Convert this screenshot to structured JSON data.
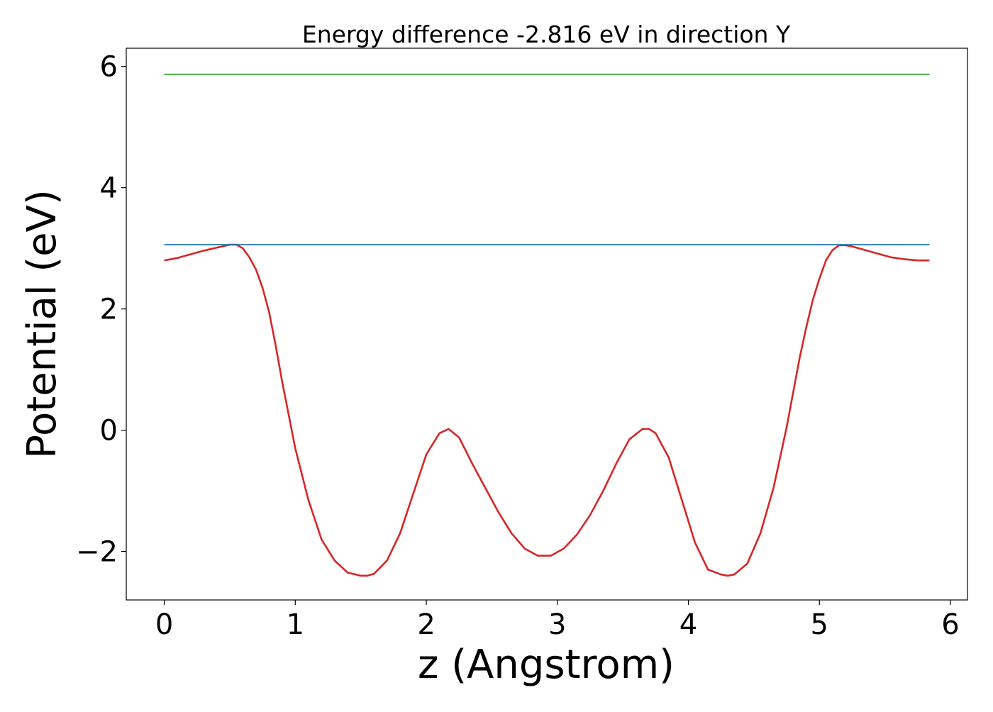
{
  "chart_data": {
    "type": "line",
    "title": "Energy difference -2.816 eV in direction Y",
    "xlabel": "z (Angstrom)",
    "ylabel": "Potential (eV)",
    "xlim": [
      -0.29,
      6.13
    ],
    "ylim": [
      -2.8,
      6.3
    ],
    "xticks": [
      0,
      1,
      2,
      3,
      4,
      5,
      6
    ],
    "xtick_labels": [
      "0",
      "1",
      "2",
      "3",
      "4",
      "5",
      "6"
    ],
    "yticks": [
      -2,
      0,
      2,
      4,
      6
    ],
    "ytick_labels": [
      "−2",
      "0",
      "2",
      "4",
      "6"
    ],
    "grid": false,
    "legend": "none",
    "series": [
      {
        "color": "#d62728",
        "x": [
          0.0,
          0.1,
          0.2,
          0.3,
          0.4,
          0.5,
          0.55,
          0.6,
          0.65,
          0.7,
          0.75,
          0.8,
          0.85,
          0.9,
          0.95,
          1.0,
          1.1,
          1.2,
          1.3,
          1.4,
          1.5,
          1.55,
          1.6,
          1.7,
          1.8,
          1.9,
          2.0,
          2.1,
          2.17,
          2.25,
          2.35,
          2.45,
          2.55,
          2.65,
          2.75,
          2.85,
          2.95,
          3.05,
          3.15,
          3.25,
          3.35,
          3.45,
          3.55,
          3.65,
          3.7,
          3.75,
          3.85,
          3.95,
          4.05,
          4.15,
          4.25,
          4.3,
          4.35,
          4.45,
          4.55,
          4.65,
          4.75,
          4.85,
          4.9,
          4.95,
          5.0,
          5.05,
          5.1,
          5.15,
          5.2,
          5.25,
          5.3,
          5.35,
          5.45,
          5.55,
          5.65,
          5.75,
          5.84
        ],
        "y": [
          2.8,
          2.84,
          2.9,
          2.96,
          3.01,
          3.06,
          3.06,
          3.0,
          2.85,
          2.65,
          2.35,
          1.95,
          1.4,
          0.8,
          0.25,
          -0.3,
          -1.15,
          -1.8,
          -2.15,
          -2.35,
          -2.4,
          -2.4,
          -2.37,
          -2.15,
          -1.7,
          -1.05,
          -0.4,
          -0.05,
          0.02,
          -0.12,
          -0.55,
          -0.95,
          -1.35,
          -1.7,
          -1.95,
          -2.07,
          -2.07,
          -1.95,
          -1.72,
          -1.4,
          -1.0,
          -0.55,
          -0.15,
          0.02,
          0.02,
          -0.05,
          -0.45,
          -1.15,
          -1.85,
          -2.3,
          -2.38,
          -2.4,
          -2.38,
          -2.2,
          -1.7,
          -0.95,
          0.05,
          1.2,
          1.7,
          2.15,
          2.5,
          2.8,
          2.97,
          3.05,
          3.05,
          3.03,
          3.0,
          2.97,
          2.91,
          2.85,
          2.82,
          2.8,
          2.8
        ]
      },
      {
        "color": "#1f77b4",
        "x": [
          0.0,
          5.84
        ],
        "y": [
          3.06,
          3.06
        ]
      },
      {
        "color": "#2ca02c",
        "x": [
          0.0,
          5.84
        ],
        "y": [
          5.87,
          5.87
        ]
      }
    ]
  }
}
